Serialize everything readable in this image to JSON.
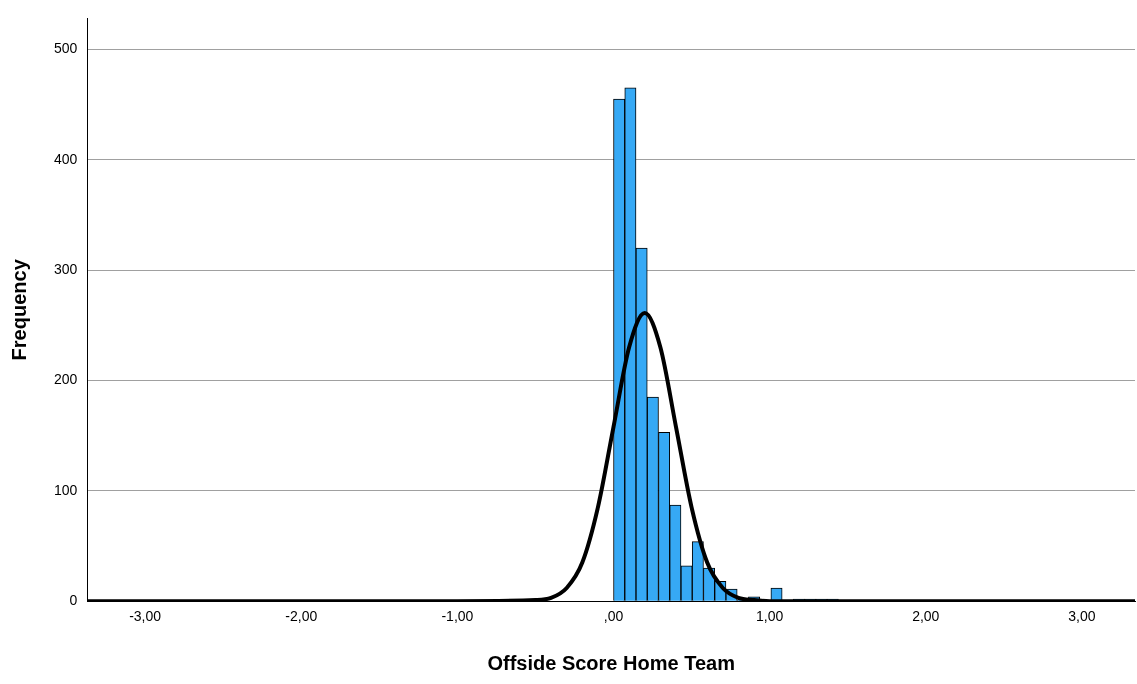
{
  "chart_data": {
    "type": "histogram",
    "xlabel": "Offside Score Home Team",
    "ylabel": "Frequency",
    "bins": [
      0,
      0.072,
      0.144,
      0.216,
      0.288,
      0.36,
      0.432,
      0.504,
      0.576,
      0.648,
      0.72,
      0.792,
      0.864,
      0.936,
      1.008,
      1.08,
      1.152,
      1.224,
      1.296,
      1.368,
      1.44
    ],
    "values": [
      455,
      465,
      320,
      185,
      153,
      87,
      32,
      54,
      30,
      18,
      11,
      1,
      4,
      0,
      12,
      0,
      2,
      2,
      2,
      2
    ],
    "color": "#36a9f5",
    "series": [
      {
        "type": "line",
        "color": "#000000",
        "x": [
          -3.37,
          -1,
          -0.5,
          -0.4,
          -0.3,
          -0.2,
          -0.1,
          0,
          0.1,
          0.2,
          0.3,
          0.4,
          0.5,
          0.6,
          0.7,
          0.8,
          0.9,
          1,
          3.34
        ],
        "values": [
          0,
          0,
          1,
          3,
          12,
          35,
          85,
          158,
          230,
          261,
          230,
          158,
          85,
          35,
          12,
          3,
          1,
          0,
          0
        ]
      }
    ],
    "xlim": [
      -3.37,
      3.34
    ],
    "xticks": [
      {
        "value": -3,
        "label": "-3,00"
      },
      {
        "value": -2,
        "label": "-2,00"
      },
      {
        "value": -1,
        "label": "-1,00"
      },
      {
        "value": 0,
        "label": ",00"
      },
      {
        "value": 1,
        "label": "1,00"
      },
      {
        "value": 2,
        "label": "2,00"
      },
      {
        "value": 3,
        "label": "3,00"
      }
    ],
    "ylim": [
      0,
      528
    ],
    "yticks": [
      0,
      100,
      200,
      300,
      400,
      500
    ],
    "grid": "y",
    "legend": false,
    "marker": "none",
    "line_style": "solid"
  }
}
